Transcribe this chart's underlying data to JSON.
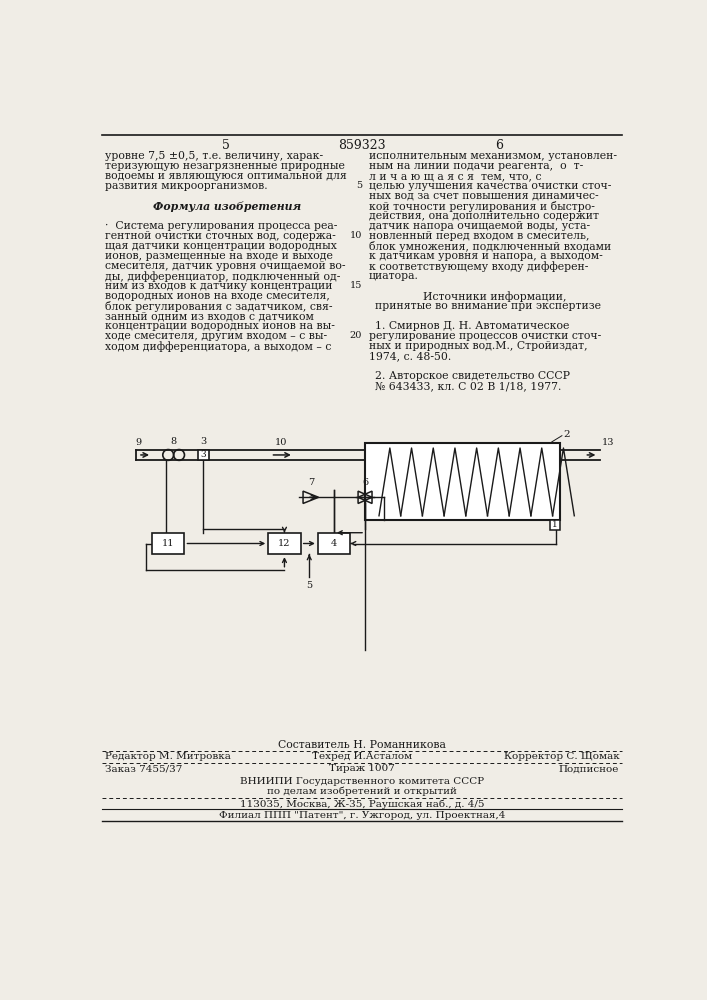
{
  "page_num_left": "5",
  "patent_num": "859323",
  "page_num_right": "6",
  "left_col_lines": [
    "уровне 7,5 ±0,5, т.е. величину, харак-",
    "теризующую незагрязненные природные",
    "водоемы и являющуюся оптимальной для",
    "развития микроорганизмов.",
    "",
    "Формула изобретения",
    "",
    "·  Система регулирования процесса реа-",
    "гентной очистки сточных вод, содержа-",
    "щая датчики концентрации водородных",
    "ионов, размещенные на входе и выходе",
    "смесителя, датчик уровня очищаемой во-",
    "ды, дифференциатор, подключенный од-",
    "ним из входов к датчику концентрации",
    "водородных ионов на входе смесителя,",
    "блок регулирования с задатчиком, свя-",
    "занный одним из входов с датчиком",
    "концентрации водородных ионов на вы-",
    "ходе смесителя, другим входом – с вы-",
    "ходом дифференциатора, а выходом – с"
  ],
  "right_col_lines": [
    "исполнительным механизмом, установлен-",
    "ным на линии подачи реагента,  о  т-",
    "л и ч а ю щ а я с я  тем, что, с",
    "целью улучшения качества очистки сточ-",
    "ных вод за счет повышения динамичес-",
    "кой точности регулирования и быстро-",
    "действия, она дополнительно содержит",
    "датчик напора очищаемой воды, уста-",
    "новленный перед входом в смеситель,",
    "блок умножения, подключенный входами",
    "к датчикам уровня и напора, а выходом-",
    "к соответствующему входу дифферен-",
    "циатора.",
    "",
    "Источники информации,",
    "принятые во внимание при экспертизе",
    "",
    "1. Смирнов Д. Н. Автоматическое",
    "регулирование процессов очистки сточ-",
    "ных и природных вод.М., Стройиздат,",
    "1974, с. 48-50.",
    "",
    "2. Авторское свидетельство СССР",
    "№ 643433, кл. С 02 В 1/18, 1977."
  ],
  "line_numbers": [
    [
      3,
      "5"
    ],
    [
      8,
      "10"
    ],
    [
      13,
      "15"
    ],
    [
      18,
      "20"
    ]
  ],
  "footer_sestavitel": "Составитель Н. Романникова",
  "footer_redaktor": "Редактор М. Митровка",
  "footer_tehred": "Техред И.Асталом",
  "footer_korrektor": "Корректор С. Щомак",
  "footer_zakaz": "Заказ 7455/37",
  "footer_tirazh": "Тираж 1007",
  "footer_podpisnoe": "Подписное",
  "footer_vniipи": "ВНИИПИ Государственного комитета СССР",
  "footer_po_delam": "по делам изобретений и открытий",
  "footer_addr": "113035, Москва, Ж-35, Раушская наб., д. 4/5",
  "footer_filial": "Филиал ППП \"Патент\", г. Ужгород, ул. Проектная,4",
  "bg_color": "#f0ede6",
  "text_color": "#1a1a1a"
}
